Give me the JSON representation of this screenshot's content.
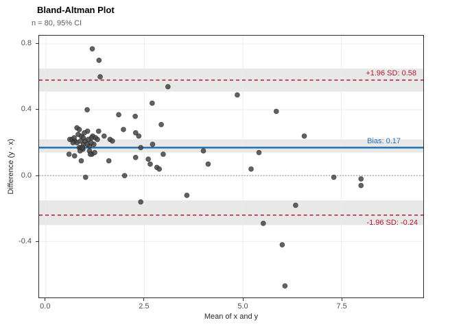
{
  "chart_data": {
    "type": "scatter",
    "title": "Bland-Altman Plot",
    "subtitle": "n = 80, 95% CI",
    "xlabel": "Mean of x and y",
    "ylabel": "Difference (y - x)",
    "grid": true,
    "legend": "none",
    "x_axis": {
      "domain": [
        -0.17,
        9.58
      ],
      "ticks": [
        0,
        2.5,
        5,
        7.5
      ],
      "tick_labels": [
        "0.0",
        "2.5",
        "5.0",
        "7.5"
      ]
    },
    "y_axis": {
      "domain": [
        -0.74,
        0.85
      ],
      "ticks": [
        0.8,
        0.4,
        0.0,
        -0.4
      ],
      "tick_labels": [
        "0.8",
        "0.4",
        "0.0",
        "-0.4"
      ]
    },
    "colors": {
      "point": "#474747",
      "band": "#e8e8e8",
      "grid": "#ebebeb",
      "bias_line": "#2171b5",
      "loa_line": "#b2182b",
      "zero_line": "#808080"
    },
    "reference_lines": [
      {
        "id": "upper_loa",
        "y": 0.58,
        "style": "dashed",
        "color": "#b2182b",
        "ci_band": [
          0.51,
          0.65
        ],
        "label": "+1.96 SD: 0.58",
        "label_position": "above"
      },
      {
        "id": "lower_loa",
        "y": -0.24,
        "style": "dashed",
        "color": "#b2182b",
        "ci_band": [
          -0.3,
          -0.15
        ],
        "label": "-1.96 SD: -0.24",
        "label_position": "below"
      },
      {
        "id": "zero",
        "y": 0,
        "style": "dotted",
        "color": "#808080",
        "ci_band": null,
        "label": null,
        "label_position": null
      },
      {
        "id": "bias",
        "y": 0.17,
        "style": "solid",
        "color": "#2171b5",
        "ci_band": [
          0.14,
          0.22
        ],
        "label": "Bias: 0.17",
        "label_position": "above"
      }
    ],
    "n_points": 80,
    "points": [
      [
        1.18,
        0.77
      ],
      [
        1.35,
        0.7
      ],
      [
        1.38,
        0.6
      ],
      [
        3.1,
        0.54
      ],
      [
        2.7,
        0.44
      ],
      [
        1.05,
        0.4
      ],
      [
        1.85,
        0.37
      ],
      [
        2.27,
        0.36
      ],
      [
        2.93,
        0.31
      ],
      [
        0.79,
        0.29
      ],
      [
        0.85,
        0.28
      ],
      [
        1.97,
        0.28
      ],
      [
        2.28,
        0.26
      ],
      [
        2.36,
        0.24
      ],
      [
        1.06,
        0.27
      ],
      [
        1.34,
        0.27
      ],
      [
        0.98,
        0.26
      ],
      [
        0.9,
        0.24
      ],
      [
        1.19,
        0.24
      ],
      [
        1.26,
        0.23
      ],
      [
        1.48,
        0.24
      ],
      [
        1.31,
        0.22
      ],
      [
        0.61,
        0.22
      ],
      [
        0.67,
        0.22
      ],
      [
        0.74,
        0.21
      ],
      [
        0.79,
        0.2
      ],
      [
        0.69,
        0.2
      ],
      [
        1.63,
        0.22
      ],
      [
        1.69,
        0.21
      ],
      [
        1.16,
        0.23
      ],
      [
        2.41,
        0.17
      ],
      [
        2.71,
        0.19
      ],
      [
        0.85,
        0.17
      ],
      [
        0.89,
        0.17
      ],
      [
        0.94,
        0.16
      ],
      [
        0.87,
        0.15
      ],
      [
        1.11,
        0.18
      ],
      [
        0.96,
        0.19
      ],
      [
        0.93,
        0.17
      ],
      [
        1.11,
        0.15
      ],
      [
        1.17,
        0.13
      ],
      [
        0.59,
        0.13
      ],
      [
        0.73,
        0.12
      ],
      [
        1.13,
        0.13
      ],
      [
        1.24,
        0.14
      ],
      [
        0.9,
        0.09
      ],
      [
        1.6,
        0.09
      ],
      [
        2.28,
        0.11
      ],
      [
        2.98,
        0.13
      ],
      [
        2.6,
        0.1
      ],
      [
        2.65,
        0.07
      ],
      [
        2.82,
        0.05
      ],
      [
        2.88,
        0.04
      ],
      [
        1.01,
        -0.01
      ],
      [
        2.0,
        0.0
      ],
      [
        2.41,
        -0.16
      ],
      [
        3.58,
        -0.12
      ],
      [
        4.86,
        0.49
      ],
      [
        5.85,
        0.39
      ],
      [
        4.0,
        0.15
      ],
      [
        5.41,
        0.14
      ],
      [
        4.12,
        0.07
      ],
      [
        5.21,
        0.04
      ],
      [
        6.34,
        -0.18
      ],
      [
        5.52,
        -0.29
      ],
      [
        6.0,
        -0.42
      ],
      [
        6.07,
        -0.67
      ],
      [
        6.56,
        0.24
      ],
      [
        7.31,
        -0.01
      ],
      [
        8.0,
        -0.02
      ],
      [
        8.0,
        -0.06
      ],
      [
        0.72,
        0.23
      ],
      [
        0.82,
        0.25
      ],
      [
        1.0,
        0.21
      ],
      [
        1.05,
        0.19
      ],
      [
        0.95,
        0.23
      ],
      [
        1.08,
        0.22
      ],
      [
        0.88,
        0.21
      ],
      [
        1.22,
        0.19
      ],
      [
        1.15,
        0.2
      ]
    ]
  }
}
